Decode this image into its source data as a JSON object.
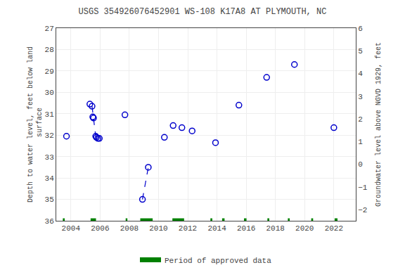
{
  "chart_data": {
    "type": "scatter",
    "title": "USGS 354926076452901 WS-108 K17A8 AT PLYMOUTH, NC",
    "y_label": "Depth to water level, feet below land\n surface",
    "y2_label": "Groundwater level above NGVD 1929, feet",
    "xlim": [
      2003.0,
      2023.5
    ],
    "xticks": [
      2004,
      2006,
      2008,
      2010,
      2012,
      2014,
      2016,
      2018,
      2020,
      2022
    ],
    "ylim": [
      36.0,
      27.0
    ],
    "yticks": [
      27.0,
      28.0,
      29.0,
      30.0,
      31.0,
      32.0,
      33.0,
      34.0,
      35.0,
      36.0
    ],
    "y2lim": [
      -2.5,
      6.0
    ],
    "y2ticks": [
      6.0,
      5.0,
      4.0,
      3.0,
      2.0,
      1.0,
      0.0,
      -1.0,
      -2.0
    ],
    "grid": true,
    "legend": "bottom",
    "series": [
      {
        "type": "scatter",
        "marker": "open_circle",
        "color": "#0000cc",
        "x": [
          2003.7,
          2005.3,
          2005.45,
          2005.5,
          2005.55,
          2005.7,
          2005.75,
          2005.85,
          2005.95,
          2007.7,
          2008.9,
          2009.3,
          2010.4,
          2011.0,
          2011.6,
          2012.3,
          2013.9,
          2015.5,
          2017.4,
          2019.3,
          2022.0
        ],
        "values": [
          32.05,
          30.55,
          30.65,
          31.15,
          31.2,
          32.05,
          32.1,
          32.15,
          32.15,
          31.05,
          35.0,
          33.5,
          32.1,
          31.55,
          31.65,
          31.8,
          32.35,
          30.6,
          29.3,
          28.7,
          31.65
        ]
      },
      {
        "type": "line",
        "line_style": "dashed",
        "color": "#0000cc",
        "x": [
          2005.45,
          2005.55,
          2005.7,
          2005.75,
          2005.85,
          2005.95,
          null,
          2008.9,
          2009.3
        ],
        "values": [
          30.65,
          31.2,
          32.05,
          32.1,
          32.15,
          32.15,
          null,
          35.0,
          33.5
        ]
      },
      {
        "type": "bar",
        "orientation": "horizontal",
        "name": "Period of approved data",
        "color": "#008000",
        "y": 36.0,
        "ranges": [
          [
            2003.45,
            2003.58
          ],
          [
            2005.35,
            2005.72
          ],
          [
            2007.75,
            2007.87
          ],
          [
            2008.75,
            2009.6
          ],
          [
            2010.95,
            2011.75
          ],
          [
            2013.55,
            2013.68
          ],
          [
            2014.35,
            2014.52
          ],
          [
            2015.85,
            2016.02
          ],
          [
            2017.45,
            2017.58
          ],
          [
            2018.85,
            2018.98
          ],
          [
            2020.45,
            2020.58
          ],
          [
            2022.05,
            2022.25
          ]
        ]
      }
    ]
  }
}
